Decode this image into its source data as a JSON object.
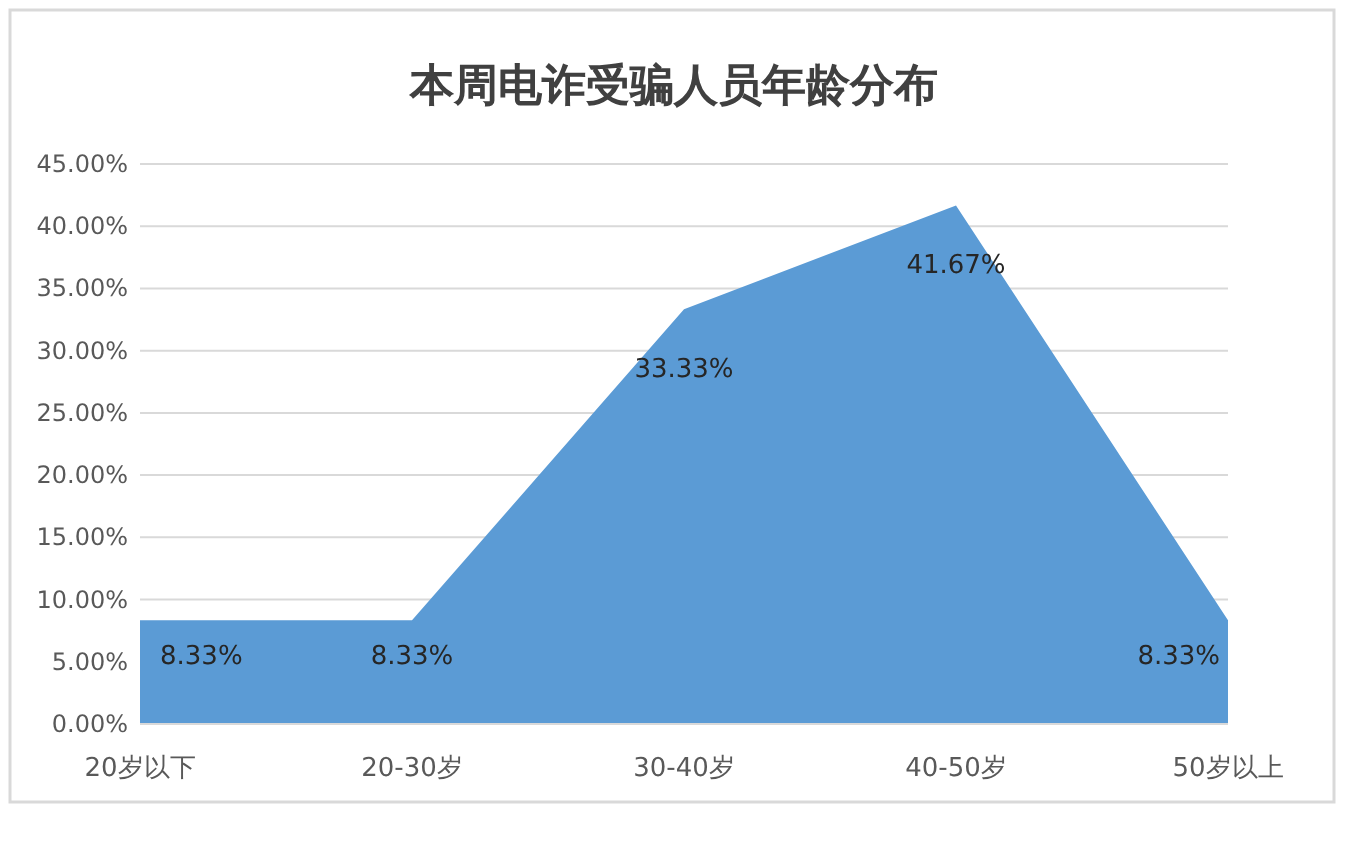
{
  "chart_data": {
    "type": "area",
    "title": "本周电诈受骗人员年龄分布",
    "categories": [
      "20岁以下",
      "20-30岁",
      "30-40岁",
      "40-50岁",
      "50岁以上"
    ],
    "values": [
      8.33,
      8.33,
      33.33,
      41.67,
      8.33
    ],
    "value_labels": [
      "8.33%",
      "8.33%",
      "33.33%",
      "41.67%",
      "8.33%"
    ],
    "color": "#5b9bd5",
    "ylim": [
      0,
      45
    ],
    "yticks": [
      {
        "value": 0,
        "label": "0.00%"
      },
      {
        "value": 5,
        "label": "5.00%"
      },
      {
        "value": 10,
        "label": "10.00%"
      },
      {
        "value": 15,
        "label": "15.00%"
      },
      {
        "value": 20,
        "label": "20.00%"
      },
      {
        "value": 25,
        "label": "25.00%"
      },
      {
        "value": 30,
        "label": "30.00%"
      },
      {
        "value": 35,
        "label": "35.00%"
      },
      {
        "value": 40,
        "label": "40.00%"
      },
      {
        "value": 45,
        "label": "45.00%"
      }
    ],
    "grid": "y"
  }
}
